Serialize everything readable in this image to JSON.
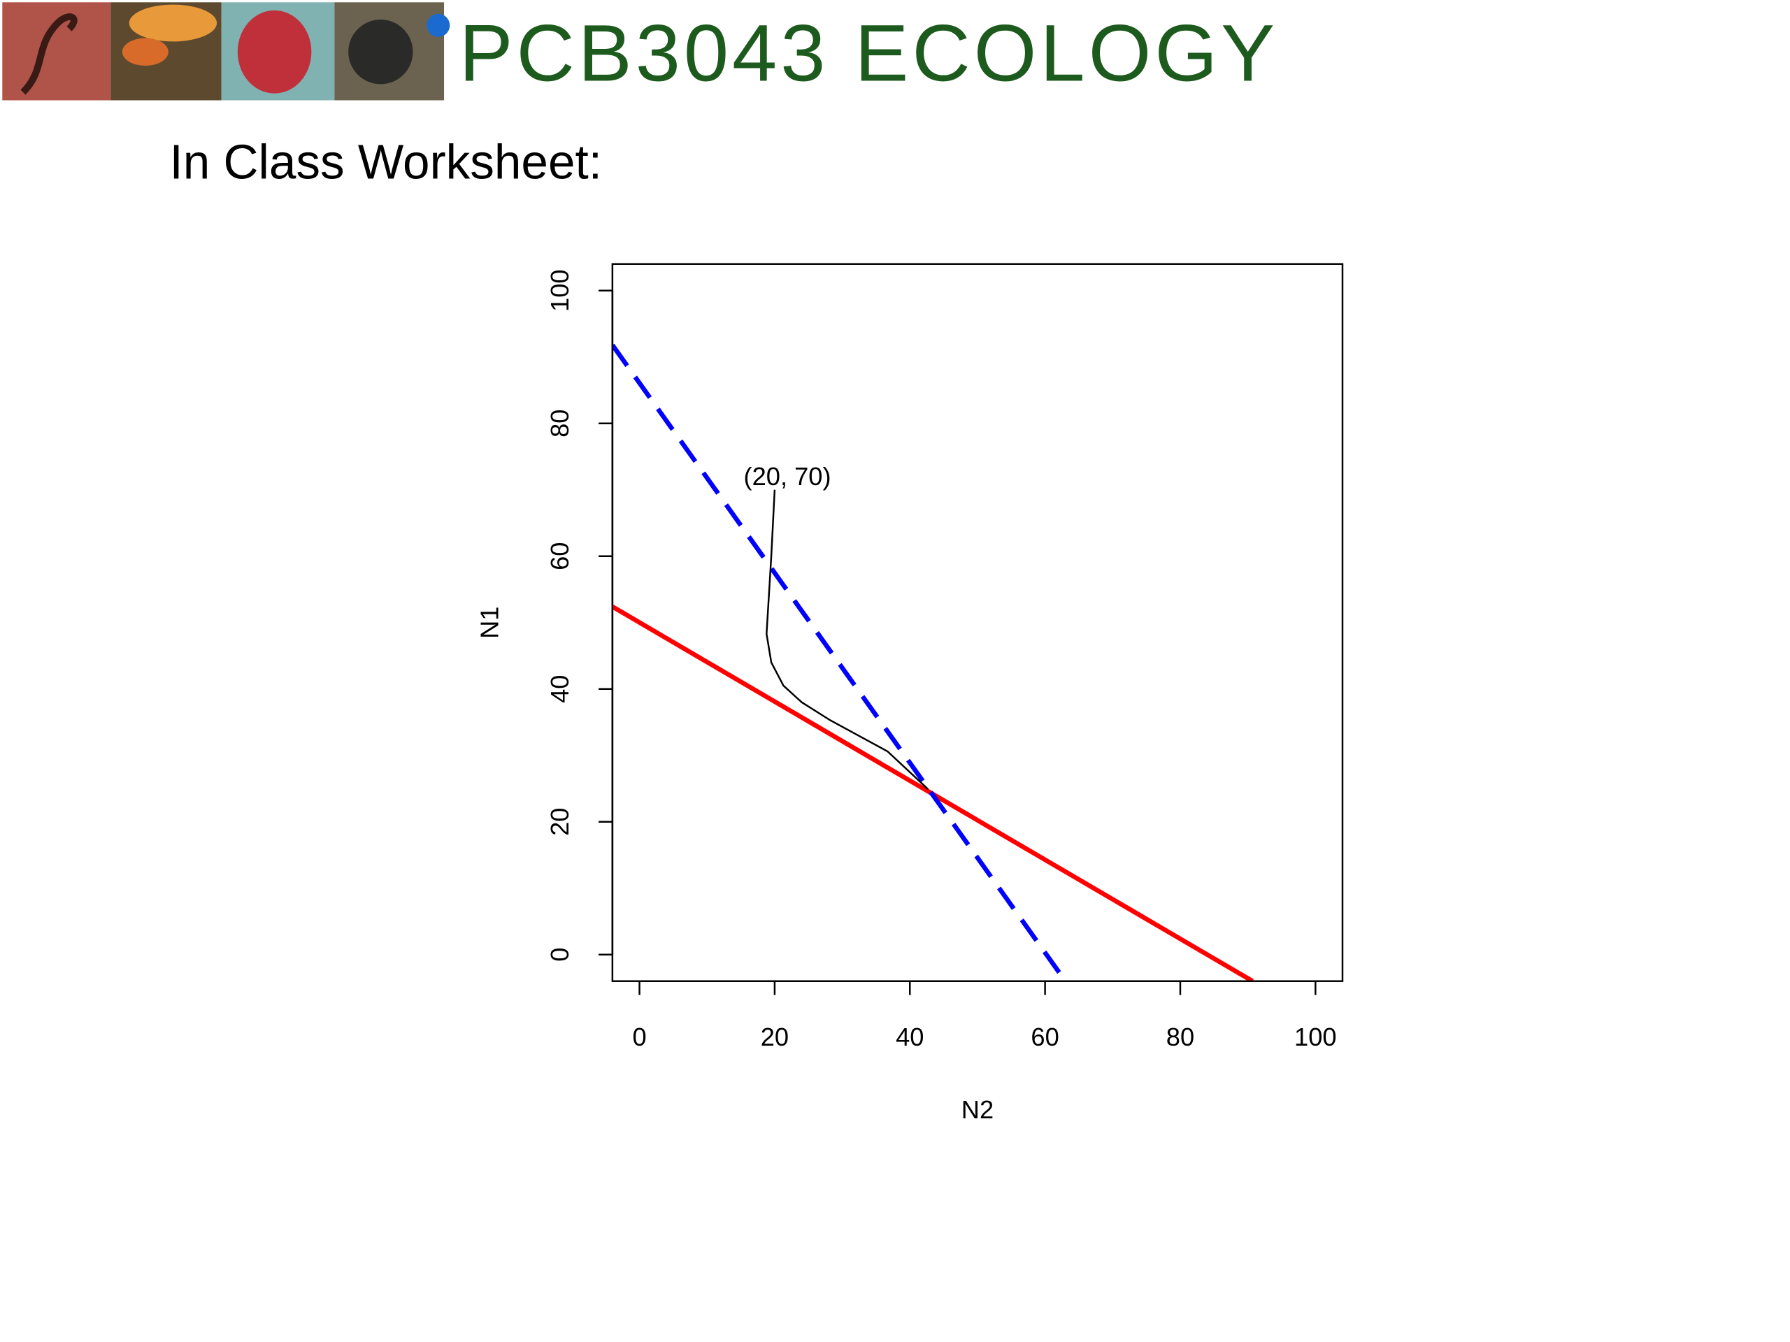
{
  "header": {
    "title": "PCB3043  ECOLOGY",
    "subtitle": "In Class Worksheet:"
  },
  "chart_data": {
    "type": "line",
    "x_label": "N2",
    "y_label": "N1",
    "xlim": [
      -4,
      104
    ],
    "ylim": [
      -4,
      104
    ],
    "xticks": [
      0,
      20,
      40,
      60,
      80,
      100
    ],
    "yticks": [
      0,
      20,
      40,
      60,
      80,
      100
    ],
    "series": [
      {
        "color": "#ff0000",
        "dashed": false,
        "width": 4,
        "x": [
          -4,
          90.7
        ],
        "values": [
          52.4,
          -4
        ]
      },
      {
        "color": "#0000ff",
        "dashed": true,
        "width": 4,
        "x": [
          -4,
          63
        ],
        "values": [
          91.8,
          -4
        ]
      },
      {
        "color": "#000000",
        "dashed": false,
        "width": 1.5,
        "x": [
          20,
          19.5,
          18.8,
          19.5,
          21.3,
          24,
          28.2,
          36.7,
          42.7
        ],
        "values": [
          70,
          60,
          48.3,
          44,
          40.5,
          38,
          35.3,
          30.6,
          24.9
        ]
      }
    ],
    "annotations": [
      {
        "text": "(20, 70)",
        "x": 20,
        "y": 70
      }
    ]
  }
}
